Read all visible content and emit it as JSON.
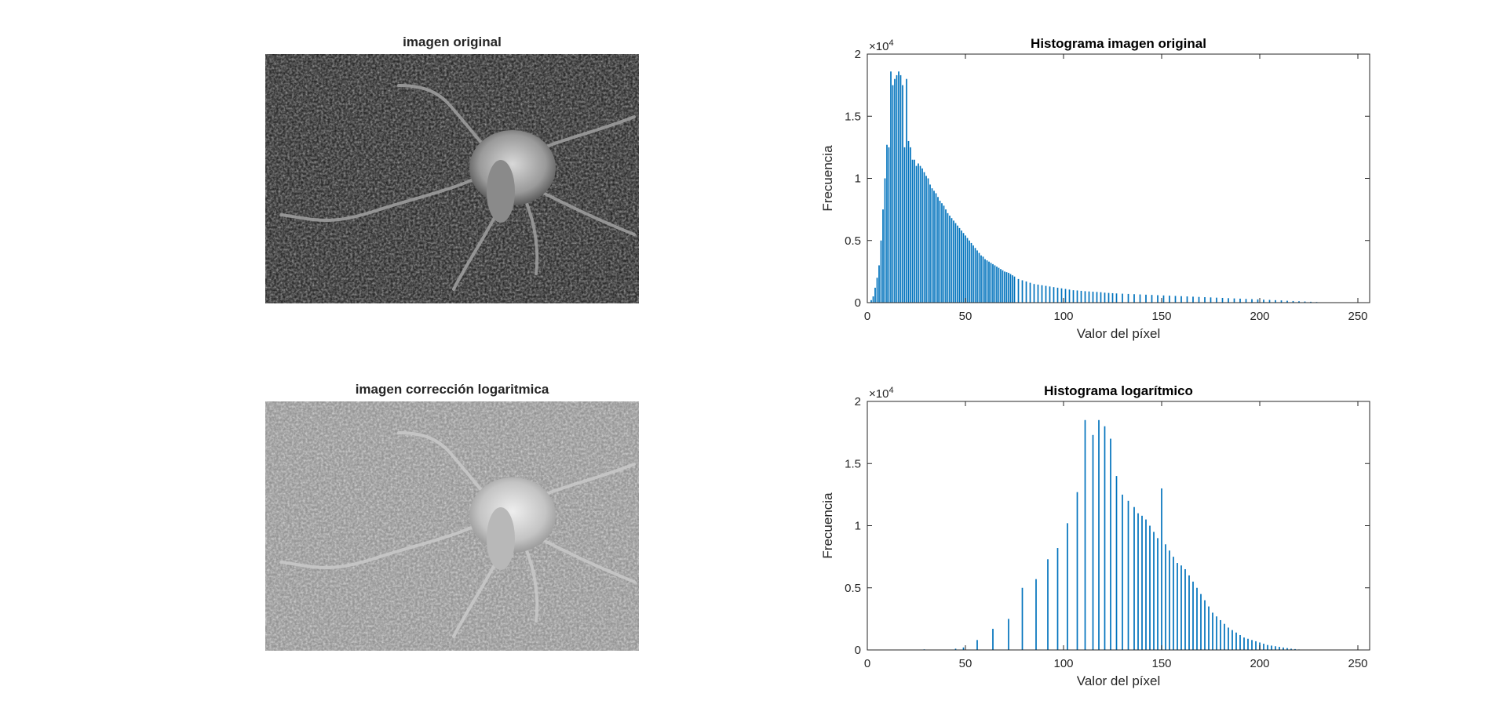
{
  "images": [
    {
      "title": "imagen original",
      "kind": "original"
    },
    {
      "title": "imagen corrección logaritmica",
      "kind": "log"
    }
  ],
  "chart_data": [
    {
      "type": "bar",
      "title": "Histograma imagen original",
      "xlabel": "Valor del píxel",
      "ylabel": "Frecuencia",
      "exponent_label": "×10",
      "exponent": "4",
      "xlim": [
        0,
        256
      ],
      "ylim": [
        0,
        20000
      ],
      "xticks": [
        0,
        50,
        100,
        150,
        200,
        250
      ],
      "yticks": [
        0,
        0.5,
        1,
        1.5,
        2
      ],
      "bar_color": "#0072BD",
      "x": [
        2,
        3,
        4,
        5,
        6,
        7,
        8,
        9,
        10,
        11,
        12,
        13,
        14,
        15,
        16,
        17,
        18,
        19,
        20,
        21,
        22,
        23,
        24,
        25,
        26,
        27,
        28,
        29,
        30,
        31,
        32,
        33,
        34,
        35,
        36,
        37,
        38,
        39,
        40,
        41,
        42,
        43,
        44,
        45,
        46,
        47,
        48,
        49,
        50,
        51,
        52,
        53,
        54,
        55,
        56,
        57,
        58,
        59,
        60,
        61,
        62,
        63,
        64,
        65,
        66,
        67,
        68,
        69,
        70,
        71,
        72,
        73,
        74,
        75,
        77,
        79,
        81,
        83,
        85,
        87,
        89,
        91,
        93,
        95,
        97,
        99,
        101,
        103,
        105,
        107,
        109,
        111,
        113,
        115,
        117,
        119,
        121,
        123,
        125,
        127,
        130,
        133,
        136,
        139,
        142,
        145,
        148,
        151,
        154,
        157,
        160,
        163,
        166,
        169,
        172,
        175,
        178,
        181,
        184,
        187,
        190,
        193,
        196,
        199,
        202,
        205,
        208,
        211,
        214,
        217,
        220,
        223,
        226,
        229,
        232,
        235
      ],
      "values": [
        200,
        500,
        1200,
        2000,
        3000,
        5000,
        7500,
        10000,
        12700,
        12500,
        18600,
        17500,
        18000,
        18300,
        18600,
        18300,
        17500,
        12500,
        18000,
        13000,
        12500,
        11500,
        11500,
        11000,
        11200,
        11000,
        10800,
        10500,
        10200,
        10000,
        9500,
        9200,
        9000,
        8800,
        8500,
        8200,
        8000,
        7800,
        7500,
        7200,
        7000,
        6800,
        6600,
        6400,
        6200,
        6000,
        5800,
        5600,
        5400,
        5200,
        5000,
        4800,
        4600,
        4400,
        4200,
        4000,
        3800,
        3700,
        3500,
        3400,
        3300,
        3200,
        3100,
        3000,
        2900,
        2800,
        2700,
        2600,
        2500,
        2450,
        2400,
        2300,
        2200,
        2100,
        1900,
        1800,
        1700,
        1600,
        1500,
        1450,
        1400,
        1350,
        1300,
        1250,
        1200,
        1150,
        1100,
        1050,
        1000,
        980,
        950,
        920,
        900,
        880,
        860,
        840,
        800,
        780,
        760,
        740,
        720,
        700,
        680,
        660,
        640,
        620,
        600,
        580,
        560,
        540,
        520,
        500,
        480,
        460,
        440,
        420,
        400,
        380,
        360,
        340,
        320,
        300,
        280,
        260,
        240,
        220,
        200,
        180,
        150,
        130,
        110,
        90,
        70,
        50,
        30,
        20
      ]
    },
    {
      "type": "bar",
      "title": "Histograma logarítmico",
      "xlabel": "Valor del píxel",
      "ylabel": "Frecuencia",
      "exponent_label": "×10",
      "exponent": "4",
      "xlim": [
        0,
        256
      ],
      "ylim": [
        0,
        20000
      ],
      "xticks": [
        0,
        50,
        100,
        150,
        200,
        250
      ],
      "yticks": [
        0,
        0.5,
        1,
        1.5,
        2
      ],
      "bar_color": "#0072BD",
      "x": [
        29,
        45,
        49,
        56,
        64,
        72,
        79,
        86,
        92,
        97,
        102,
        107,
        111,
        115,
        118,
        121,
        124,
        127,
        130,
        133,
        136,
        138,
        140,
        142,
        144,
        146,
        148,
        150,
        152,
        154,
        156,
        158,
        160,
        162,
        164,
        166,
        168,
        170,
        172,
        174,
        176,
        178,
        180,
        182,
        184,
        186,
        188,
        190,
        192,
        194,
        196,
        198,
        200,
        202,
        204,
        206,
        208,
        210,
        212,
        214,
        216,
        218,
        220,
        222
      ],
      "values": [
        50,
        100,
        200,
        800,
        1700,
        2500,
        5000,
        5700,
        7300,
        8200,
        10200,
        12700,
        18500,
        17300,
        18500,
        18000,
        17000,
        14000,
        12500,
        12000,
        11500,
        11000,
        10800,
        10500,
        10000,
        9500,
        9000,
        13000,
        8500,
        8000,
        7500,
        7000,
        6800,
        6500,
        6000,
        5500,
        5000,
        4500,
        4000,
        3500,
        3000,
        2700,
        2400,
        2100,
        1800,
        1600,
        1400,
        1200,
        1000,
        900,
        800,
        700,
        600,
        500,
        400,
        350,
        300,
        250,
        200,
        150,
        100,
        70,
        40,
        20
      ]
    }
  ]
}
